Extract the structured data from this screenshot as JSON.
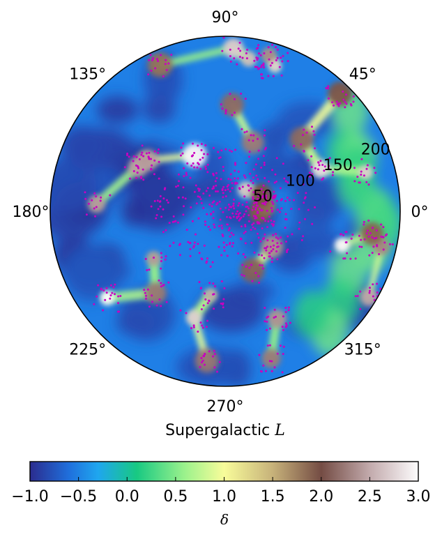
{
  "chart_data": {
    "type": "heatmap",
    "projection": "polar",
    "angle_ticks": [
      {
        "deg": 90,
        "label": "90°"
      },
      {
        "deg": 45,
        "label": "45°"
      },
      {
        "deg": 135,
        "label": "135°"
      },
      {
        "deg": 180,
        "label": "180°"
      },
      {
        "deg": 0,
        "label": "0°"
      },
      {
        "deg": 225,
        "label": "225°"
      },
      {
        "deg": 315,
        "label": "315°"
      },
      {
        "deg": 270,
        "label": "270°"
      }
    ],
    "radial_ticks": [
      {
        "value": 50,
        "label": "50"
      },
      {
        "value": 100,
        "label": "100"
      },
      {
        "value": 150,
        "label": "150"
      },
      {
        "value": 200,
        "label": "200"
      }
    ],
    "radial_range": [
      0,
      215
    ],
    "xlabel_prefix": "Supergalactic ",
    "xlabel_var": "L",
    "colorbar": {
      "label": "δ",
      "range": [
        -1.0,
        3.0
      ],
      "ticks": [
        -1.0,
        -0.5,
        0.0,
        0.5,
        1.0,
        1.5,
        2.0,
        2.5,
        3.0
      ],
      "tick_labels": [
        "−1.0",
        "−0.5",
        "0.0",
        "0.5",
        "1.0",
        "1.5",
        "2.0",
        "2.5",
        "3.0"
      ],
      "colormap_stops": [
        {
          "value": -1.0,
          "color": "#2b2c8e"
        },
        {
          "value": -0.6,
          "color": "#1f6fdc"
        },
        {
          "value": -0.3,
          "color": "#1fa6ef"
        },
        {
          "value": 0.1,
          "color": "#18c982"
        },
        {
          "value": 0.6,
          "color": "#9df28c"
        },
        {
          "value": 1.0,
          "color": "#f8fc9a"
        },
        {
          "value": 1.5,
          "color": "#c7b27a"
        },
        {
          "value": 2.0,
          "color": "#744c44"
        },
        {
          "value": 2.5,
          "color": "#c2aaac"
        },
        {
          "value": 3.0,
          "color": "#fdfcfd"
        }
      ]
    },
    "overlay_point_color": "#c800c0",
    "grid": false
  }
}
